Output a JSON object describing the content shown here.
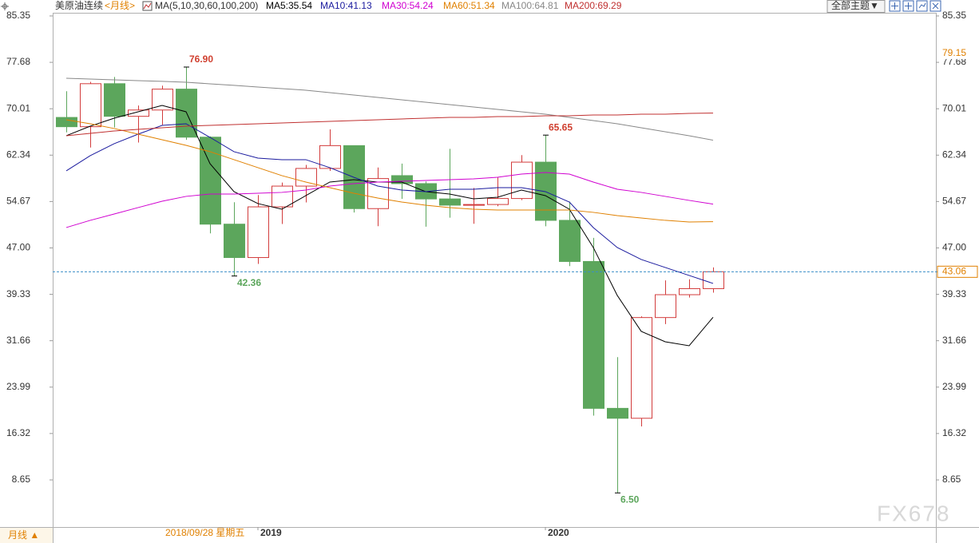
{
  "chart_data": {
    "type": "candlestick",
    "title": "美原油连续",
    "period": "<月线>",
    "ma_header": "MA(5,10,30,60,100,200)",
    "theme_button": "全部主题▼",
    "period_button": "月线 ▲",
    "watermark": "FX678",
    "cursor_date": "2018/09/28 星期五",
    "cursor_value": 79.15,
    "categories": [
      null,
      null,
      null,
      null,
      null,
      null,
      null,
      null,
      "2019",
      null,
      null,
      null,
      null,
      null,
      null,
      null,
      null,
      null,
      null,
      null,
      "2020",
      null,
      null,
      null,
      null,
      null,
      null,
      null
    ],
    "candles": {
      "open": [
        68.57,
        67.04,
        74.15,
        68.76,
        69.8,
        73.25,
        65.31,
        50.93,
        45.41,
        53.79,
        57.22,
        60.14,
        63.91,
        53.5,
        58.95,
        57.63,
        55.1,
        54.07,
        54.18,
        55.17,
        61.18,
        51.56,
        44.76,
        20.48,
        18.84,
        35.49,
        39.27,
        40.27
      ],
      "high": [
        72.9,
        74.46,
        75.27,
        70.55,
        73.82,
        76.9,
        65.44,
        54.55,
        55.75,
        57.81,
        60.73,
        66.6,
        63.91,
        60.29,
        60.94,
        57.99,
        63.38,
        56.92,
        58.66,
        62.34,
        65.65,
        54.66,
        48.66,
        28.95,
        35.7,
        41.63,
        41.81,
        43.78
      ],
      "low": [
        66.1,
        63.59,
        66.92,
        64.43,
        67.35,
        64.86,
        49.41,
        42.36,
        44.35,
        50.95,
        54.52,
        59.74,
        52.86,
        50.6,
        55.12,
        50.52,
        52.0,
        50.99,
        53.9,
        54.9,
        50.58,
        44.0,
        19.27,
        6.5,
        17.5,
        34.4,
        38.8,
        39.6
      ],
      "close": [
        67.04,
        74.15,
        68.76,
        69.8,
        73.25,
        65.31,
        50.93,
        45.41,
        53.79,
        57.22,
        60.14,
        63.91,
        53.5,
        58.47,
        57.63,
        55.1,
        54.07,
        54.18,
        55.17,
        61.18,
        51.56,
        44.76,
        20.48,
        18.84,
        35.49,
        39.27,
        40.27,
        43.06
      ]
    },
    "up_color": "#d23c3c",
    "down_color": "#5ca65c",
    "extreme_labels": [
      {
        "value": 76.9,
        "label": "76.90"
      },
      {
        "value": 42.36,
        "label": "42.36"
      },
      {
        "value": 65.65,
        "label": "65.65"
      },
      {
        "value": 6.5,
        "label": "6.50"
      }
    ],
    "series": [
      {
        "name": "MA5:35.54",
        "color": "#000000",
        "values": [
          65.55,
          67.13,
          68.45,
          69.51,
          70.56,
          69.51,
          60.93,
          56.31,
          54.33,
          53.4,
          55.65,
          57.89,
          58.29,
          57.89,
          57.89,
          56.31,
          55.91,
          55.12,
          55.38,
          56.57,
          55.65,
          53.4,
          47.07,
          39.15,
          33.21,
          31.49,
          30.83,
          35.54
        ]
      },
      {
        "name": "MA10:41.13",
        "color": "#1a1a9e",
        "values": [
          59.74,
          62.25,
          64.23,
          65.81,
          67.26,
          67.53,
          65.28,
          62.91,
          61.85,
          61.59,
          61.59,
          60.27,
          58.68,
          57.23,
          56.57,
          56.31,
          56.7,
          56.7,
          56.97,
          56.97,
          56.31,
          54.59,
          50.37,
          47.07,
          45.09,
          43.77,
          42.45,
          41.13
        ]
      },
      {
        "name": "MA30:54.24",
        "color": "#d000d0",
        "values": [
          50.37,
          51.56,
          52.61,
          53.67,
          54.72,
          55.52,
          55.91,
          55.91,
          56.04,
          56.18,
          56.57,
          57.23,
          57.63,
          57.89,
          58.02,
          58.16,
          58.29,
          58.42,
          58.68,
          59.21,
          59.48,
          59.21,
          57.89,
          56.7,
          56.18,
          55.52,
          54.86,
          54.24
        ]
      },
      {
        "name": "MA60:51.34",
        "color": "#e08000",
        "values": [
          68.19,
          67.53,
          66.74,
          65.81,
          64.89,
          63.96,
          62.91,
          61.59,
          60.27,
          58.95,
          57.89,
          56.97,
          56.04,
          55.25,
          54.59,
          54.06,
          53.67,
          53.4,
          53.27,
          53.27,
          53.27,
          53.27,
          52.88,
          52.35,
          51.95,
          51.56,
          51.29,
          51.34
        ]
      },
      {
        "name": "MA100:64.81",
        "color": "#888888",
        "values": [
          75.05,
          74.92,
          74.79,
          74.66,
          74.53,
          74.39,
          74.13,
          73.87,
          73.6,
          73.34,
          73.07,
          72.68,
          72.28,
          71.88,
          71.49,
          71.09,
          70.7,
          70.3,
          69.9,
          69.51,
          69.11,
          68.58,
          68.06,
          67.53,
          66.87,
          66.21,
          65.55,
          64.81
        ]
      },
      {
        "name": "MA200:69.29",
        "color": "#c03030",
        "values": [
          65.55,
          65.94,
          66.34,
          66.6,
          66.87,
          67.13,
          67.26,
          67.4,
          67.53,
          67.66,
          67.79,
          67.92,
          68.06,
          68.19,
          68.32,
          68.45,
          68.58,
          68.58,
          68.72,
          68.72,
          68.85,
          68.85,
          68.98,
          68.98,
          69.11,
          69.11,
          69.24,
          69.29
        ]
      }
    ],
    "ylim": [
      0.86,
      86.93
    ],
    "yticks": [
      85.35,
      77.68,
      70.01,
      62.34,
      54.67,
      {
        "value": 47,
        "label": "47.00"
      },
      39.33,
      31.66,
      23.99,
      16.32,
      8.65
    ]
  }
}
